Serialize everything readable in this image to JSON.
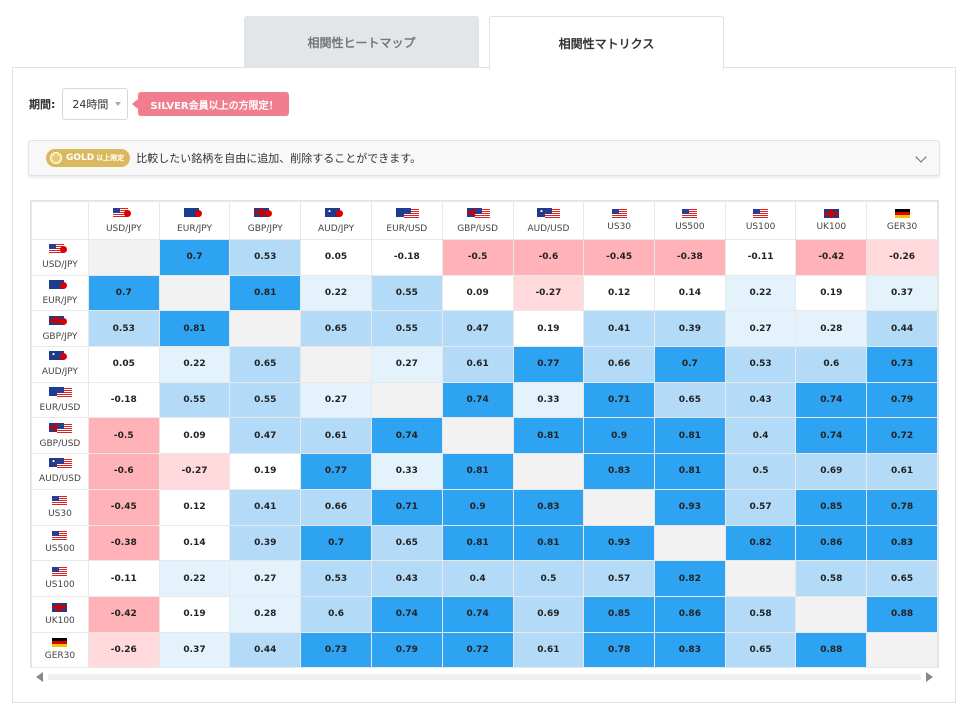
{
  "tabs": [
    {
      "label": "相関性ヒートマップ",
      "active": false
    },
    {
      "label": "相関性マトリクス",
      "active": true
    }
  ],
  "period": {
    "label": "期間:",
    "selected": "24時間"
  },
  "silver_badge": "SILVER会員以上の方限定！",
  "gold_bar": {
    "pill_main": "GOLD",
    "pill_small": "以上限定",
    "text": "比較したい銘柄を自由に追加、削除することができます。"
  },
  "colors": {
    "strong_positive": "#2ea3f2",
    "positive": "#b3dbf8",
    "weak_positive": "#e4f2fc",
    "neutral": "#ffffff",
    "weak_negative": "#ffd9dc",
    "negative": "#ffb3b8",
    "diagonal": "#f2f2f2"
  },
  "matrix": {
    "symbols": [
      {
        "name": "USD/JPY",
        "flags": [
          "us",
          "jp"
        ]
      },
      {
        "name": "EUR/JPY",
        "flags": [
          "eu",
          "jp"
        ]
      },
      {
        "name": "GBP/JPY",
        "flags": [
          "gb",
          "jp"
        ]
      },
      {
        "name": "AUD/JPY",
        "flags": [
          "au",
          "jp"
        ]
      },
      {
        "name": "EUR/USD",
        "flags": [
          "eu",
          "us"
        ]
      },
      {
        "name": "GBP/USD",
        "flags": [
          "gb",
          "us"
        ]
      },
      {
        "name": "AUD/USD",
        "flags": [
          "au",
          "us"
        ]
      },
      {
        "name": "US30",
        "flags": [
          "us"
        ]
      },
      {
        "name": "US500",
        "flags": [
          "us"
        ]
      },
      {
        "name": "US100",
        "flags": [
          "us"
        ]
      },
      {
        "name": "UK100",
        "flags": [
          "gb"
        ]
      },
      {
        "name": "GER30",
        "flags": [
          "de"
        ]
      }
    ],
    "values": [
      [
        null,
        "0.7",
        "0.53",
        "0.05",
        "-0.18",
        "-0.5",
        "-0.6",
        "-0.45",
        "-0.38",
        "-0.11",
        "-0.42",
        "-0.26"
      ],
      [
        "0.7",
        null,
        "0.81",
        "0.22",
        "0.55",
        "0.09",
        "-0.27",
        "0.12",
        "0.14",
        "0.22",
        "0.19",
        "0.37"
      ],
      [
        "0.53",
        "0.81",
        null,
        "0.65",
        "0.55",
        "0.47",
        "0.19",
        "0.41",
        "0.39",
        "0.27",
        "0.28",
        "0.44"
      ],
      [
        "0.05",
        "0.22",
        "0.65",
        null,
        "0.27",
        "0.61",
        "0.77",
        "0.66",
        "0.7",
        "0.53",
        "0.6",
        "0.73"
      ],
      [
        "-0.18",
        "0.55",
        "0.55",
        "0.27",
        null,
        "0.74",
        "0.33",
        "0.71",
        "0.65",
        "0.43",
        "0.74",
        "0.79"
      ],
      [
        "-0.5",
        "0.09",
        "0.47",
        "0.61",
        "0.74",
        null,
        "0.81",
        "0.9",
        "0.81",
        "0.4",
        "0.74",
        "0.72"
      ],
      [
        "-0.6",
        "-0.27",
        "0.19",
        "0.77",
        "0.33",
        "0.81",
        null,
        "0.83",
        "0.81",
        "0.5",
        "0.69",
        "0.61"
      ],
      [
        "-0.45",
        "0.12",
        "0.41",
        "0.66",
        "0.71",
        "0.9",
        "0.83",
        null,
        "0.93",
        "0.57",
        "0.85",
        "0.78"
      ],
      [
        "-0.38",
        "0.14",
        "0.39",
        "0.7",
        "0.65",
        "0.81",
        "0.81",
        "0.93",
        null,
        "0.82",
        "0.86",
        "0.83"
      ],
      [
        "-0.11",
        "0.22",
        "0.27",
        "0.53",
        "0.43",
        "0.4",
        "0.5",
        "0.57",
        "0.82",
        null,
        "0.58",
        "0.65"
      ],
      [
        "-0.42",
        "0.19",
        "0.28",
        "0.6",
        "0.74",
        "0.74",
        "0.69",
        "0.85",
        "0.86",
        "0.58",
        null,
        "0.88"
      ],
      [
        "-0.26",
        "0.37",
        "0.44",
        "0.73",
        "0.79",
        "0.72",
        "0.61",
        "0.78",
        "0.83",
        "0.65",
        "0.88",
        null
      ]
    ]
  }
}
